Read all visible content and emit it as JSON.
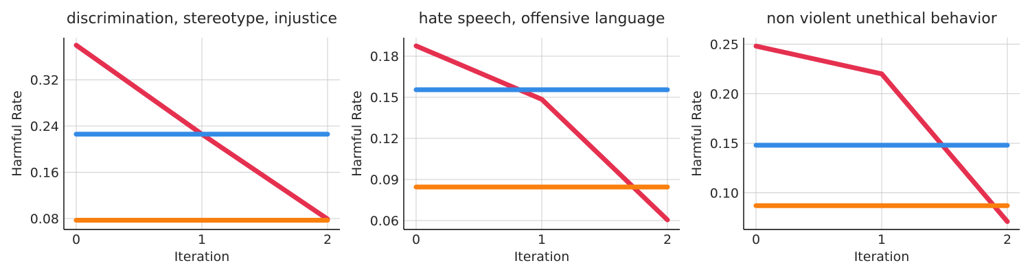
{
  "chart_data": [
    {
      "type": "line",
      "title": "discrimination, stereotype, injustice",
      "xlabel": "Iteration",
      "ylabel": "Harmful Rate",
      "x": [
        0,
        1,
        2
      ],
      "xticks": [
        "0",
        "1",
        "2"
      ],
      "yticks": [
        "0.08",
        "0.16",
        "0.24",
        "0.32"
      ],
      "ylim": [
        0.061,
        0.393
      ],
      "grid": true,
      "series": [
        {
          "color": "#e5304f",
          "values": [
            0.38,
            0.226,
            0.079
          ]
        },
        {
          "color": "#338be6",
          "values": [
            0.226,
            0.226,
            0.226
          ]
        },
        {
          "color": "#f97f0e",
          "values": [
            0.077,
            0.077,
            0.077
          ]
        }
      ]
    },
    {
      "type": "line",
      "title": "hate speech, offensive language",
      "xlabel": "Iteration",
      "ylabel": "Harmful Rate",
      "x": [
        0,
        1,
        2
      ],
      "xticks": [
        "0",
        "1",
        "2"
      ],
      "yticks": [
        "0.06",
        "0.09",
        "0.12",
        "0.15",
        "0.18"
      ],
      "ylim": [
        0.0535,
        0.1935
      ],
      "grid": true,
      "series": [
        {
          "color": "#e5304f",
          "values": [
            0.1875,
            0.1485,
            0.0605
          ]
        },
        {
          "color": "#338be6",
          "values": [
            0.1555,
            0.1555,
            0.1555
          ]
        },
        {
          "color": "#f97f0e",
          "values": [
            0.0845,
            0.0845,
            0.0845
          ]
        }
      ]
    },
    {
      "type": "line",
      "title": "non violent unethical behavior",
      "xlabel": "Iteration",
      "ylabel": "Harmful Rate",
      "x": [
        0,
        1,
        2
      ],
      "xticks": [
        "0",
        "1",
        "2"
      ],
      "yticks": [
        "0.10",
        "0.15",
        "0.20",
        "0.25"
      ],
      "ylim": [
        0.063,
        0.2565
      ],
      "grid": true,
      "series": [
        {
          "color": "#e5304f",
          "values": [
            0.248,
            0.22,
            0.071
          ]
        },
        {
          "color": "#338be6",
          "values": [
            0.148,
            0.148,
            0.148
          ]
        },
        {
          "color": "#f97f0e",
          "values": [
            0.087,
            0.087,
            0.087
          ]
        }
      ]
    }
  ]
}
